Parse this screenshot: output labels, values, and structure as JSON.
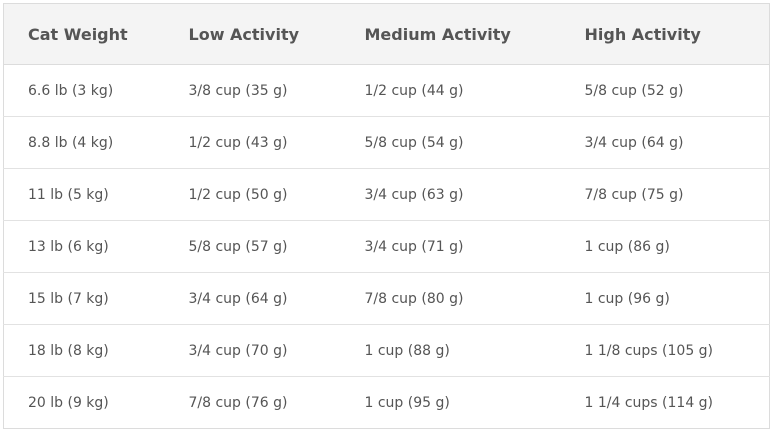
{
  "table": {
    "headers": [
      "Cat Weight",
      "Low Activity",
      "Medium Activity",
      "High Activity"
    ],
    "rows": [
      [
        "6.6 lb (3 kg)",
        "3/8 cup (35 g)",
        "1/2 cup (44 g)",
        "5/8 cup (52 g)"
      ],
      [
        "8.8 lb (4 kg)",
        "1/2 cup (43 g)",
        "5/8 cup (54 g)",
        "3/4 cup (64 g)"
      ],
      [
        "11 lb (5 kg)",
        "1/2 cup (50 g)",
        "3/4 cup (63 g)",
        "7/8 cup (75 g)"
      ],
      [
        "13 lb (6 kg)",
        "5/8 cup (57 g)",
        "3/4 cup (71 g)",
        "1 cup (86 g)"
      ],
      [
        "15 lb (7 kg)",
        "3/4 cup (64 g)",
        "7/8 cup (80 g)",
        "1 cup (96 g)"
      ],
      [
        "18 lb (8 kg)",
        "3/4 cup (70 g)",
        "1 cup (88 g)",
        "1 1/8 cups (105 g)"
      ],
      [
        "20 lb (9 kg)",
        "7/8 cup (76 g)",
        "1 cup (95 g)",
        "1 1/4 cups (114 g)"
      ]
    ]
  }
}
